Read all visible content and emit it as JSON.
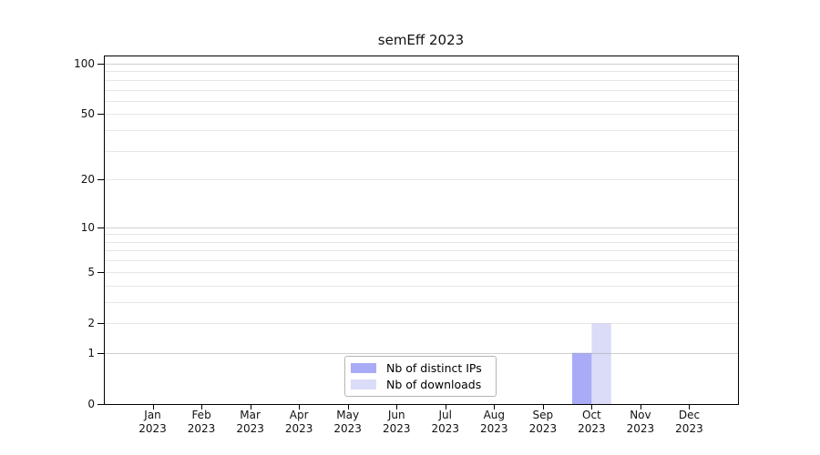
{
  "title": "semEff 2023",
  "legend": {
    "items": [
      {
        "label": "Nb of distinct IPs",
        "color": "#aaabf7"
      },
      {
        "label": "Nb of downloads",
        "color": "#dbdcf8"
      }
    ]
  },
  "chart_data": {
    "type": "bar",
    "title": "semEff 2023",
    "categories": [
      "Jan",
      "Feb",
      "Mar",
      "Apr",
      "May",
      "Jun",
      "Jul",
      "Aug",
      "Sep",
      "Oct",
      "Nov",
      "Dec"
    ],
    "year_label": "2023",
    "series": [
      {
        "name": "Nb of distinct IPs",
        "color": "#aaabf7",
        "values": [
          0,
          0,
          0,
          0,
          0,
          0,
          0,
          0,
          0,
          1,
          0,
          0
        ]
      },
      {
        "name": "Nb of downloads",
        "color": "#dbdcf8",
        "values": [
          0,
          0,
          0,
          0,
          0,
          0,
          0,
          0,
          0,
          2,
          0,
          0
        ]
      }
    ],
    "yscale": "log1p",
    "ylim": [
      0,
      112
    ],
    "yticks": [
      0,
      1,
      2,
      5,
      10,
      20,
      50,
      100
    ],
    "grid_values": [
      1,
      2,
      3,
      4,
      5,
      6,
      7,
      8,
      9,
      10,
      20,
      30,
      40,
      50,
      60,
      70,
      80,
      90,
      100
    ],
    "grid_emphasis": [
      1,
      10,
      100
    ],
    "legend_position": "bottom-center",
    "colors": {
      "grid_major": "#a8a8a8",
      "grid_minor": "#d2d2d2",
      "grid_opacity": 0.55,
      "axis": "#000000",
      "background": "#ffffff"
    }
  }
}
